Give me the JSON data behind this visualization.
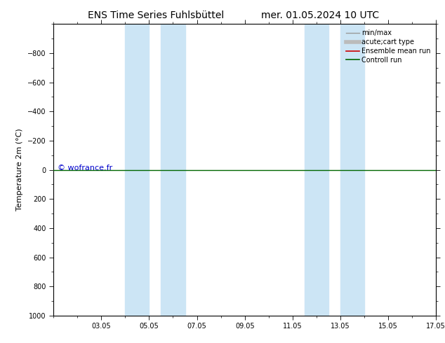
{
  "title_left": "ENS Time Series Fuhlsbüttel",
  "title_right": "mer. 01.05.2024 10 UTC",
  "ylabel": "Temperature 2m (°C)",
  "ylim": [
    -1000,
    1000
  ],
  "yticks": [
    -800,
    -600,
    -400,
    -200,
    0,
    200,
    400,
    600,
    800,
    1000
  ],
  "xlim": [
    0,
    16
  ],
  "xtick_labels": [
    "03.05",
    "05.05",
    "07.05",
    "09.05",
    "11.05",
    "13.05",
    "15.05",
    "17.05"
  ],
  "xtick_positions": [
    2,
    4,
    6,
    8,
    10,
    12,
    14,
    16
  ],
  "shaded_regions": [
    [
      3.0,
      4.0
    ],
    [
      4.5,
      5.5
    ],
    [
      10.5,
      11.5
    ],
    [
      12.0,
      13.0
    ]
  ],
  "shaded_color": "#cce5f5",
  "horizontal_line_y": 0,
  "control_run_color": "#006600",
  "ensemble_mean_color": "#cc0000",
  "minmax_color": "#999999",
  "acute_cart_color": "#bbbbbb",
  "watermark_text": "© wofrance.fr",
  "watermark_color": "#0000cc",
  "watermark_fontsize": 8,
  "background_color": "#ffffff",
  "legend_items": [
    {
      "label": "min/max",
      "color": "#999999",
      "lw": 1.0
    },
    {
      "label": "acute;cart type",
      "color": "#bbbbbb",
      "lw": 4
    },
    {
      "label": "Ensemble mean run",
      "color": "#cc0000",
      "lw": 1.2
    },
    {
      "label": "Controll run",
      "color": "#006600",
      "lw": 1.2
    }
  ],
  "title_fontsize": 10,
  "ylabel_fontsize": 8,
  "tick_fontsize": 7,
  "legend_fontsize": 7,
  "figsize": [
    6.34,
    4.9
  ],
  "dpi": 100
}
